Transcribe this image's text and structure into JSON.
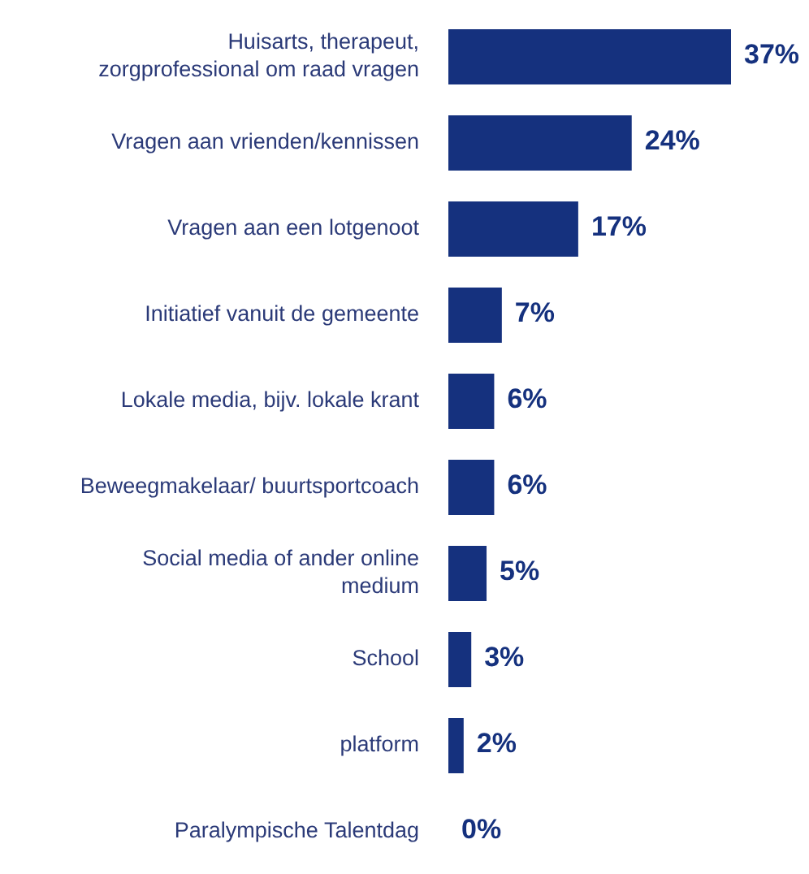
{
  "chart_data": {
    "type": "bar",
    "orientation": "horizontal",
    "categories": [
      "Huisarts, therapeut, zorgprofessional om raad vragen",
      "Vragen aan vrienden/kennissen",
      "Vragen aan een lotgenoot",
      "Initiatief vanuit de gemeente",
      "Lokale media, bijv. lokale krant",
      "Beweegmakelaar/ buurtsportcoach",
      "Social media of ander online medium",
      "School",
      "platform",
      "Paralympische Talentdag"
    ],
    "values": [
      37,
      24,
      17,
      7,
      6,
      6,
      5,
      3,
      2,
      0
    ],
    "value_labels": [
      "37%",
      "24%",
      "17%",
      "7%",
      "6%",
      "6%",
      "5%",
      "3%",
      "2%",
      "0%"
    ],
    "color": "#15317e"
  }
}
